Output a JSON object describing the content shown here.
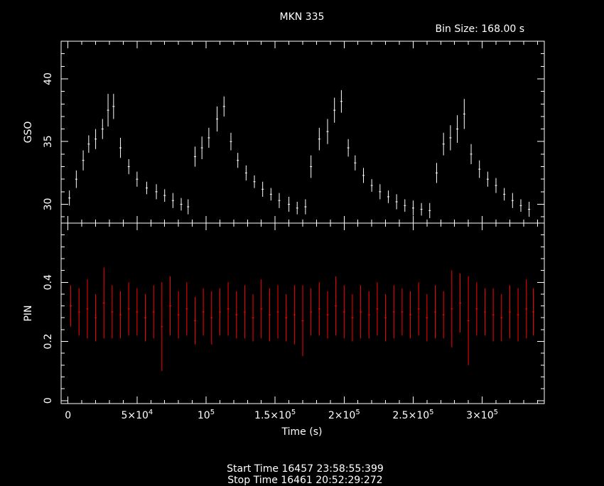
{
  "chart_data": {
    "type": "scatter",
    "title": "MKN 335",
    "subtitle": "Bin Size: 168.00 s",
    "xlabel": "Time (s)",
    "xlim": [
      -5000,
      345000
    ],
    "x_ticks": [
      {
        "value": 0,
        "label": "0",
        "base": "0",
        "exp": ""
      },
      {
        "value": 50000,
        "label": "5×10^4",
        "base": "5×10",
        "exp": "4"
      },
      {
        "value": 100000,
        "label": "10^5",
        "base": "10",
        "exp": "5"
      },
      {
        "value": 150000,
        "label": "1.5×10^5",
        "base": "1.5×10",
        "exp": "5"
      },
      {
        "value": 200000,
        "label": "2×10^5",
        "base": "2×10",
        "exp": "5"
      },
      {
        "value": 250000,
        "label": "2.5×10^5",
        "base": "2.5×10",
        "exp": "5"
      },
      {
        "value": 300000,
        "label": "3×10^5",
        "base": "3×10",
        "exp": "5"
      }
    ],
    "panels": [
      {
        "name": "GSO",
        "ylabel": "GSO",
        "ylim": [
          28.5,
          43
        ],
        "y_ticks": [
          30,
          35,
          40
        ],
        "color": "#ffffff",
        "x": [
          1000,
          6000,
          11000,
          15000,
          20000,
          25000,
          29000,
          33000,
          38000,
          44000,
          50000,
          57000,
          64000,
          70000,
          76000,
          82000,
          87000,
          92000,
          97000,
          102000,
          108000,
          113000,
          118000,
          123000,
          129000,
          135000,
          141000,
          147000,
          153000,
          160000,
          166000,
          172000,
          176000,
          182000,
          188000,
          193000,
          198000,
          203000,
          208000,
          214000,
          220000,
          226000,
          232000,
          238000,
          244000,
          250000,
          256000,
          262000,
          267000,
          272000,
          277000,
          282000,
          287000,
          292000,
          298000,
          304000,
          310000,
          316000,
          322000,
          328000,
          334000
        ],
        "y": [
          30.5,
          32.0,
          33.5,
          34.8,
          35.2,
          36.0,
          37.5,
          37.8,
          34.5,
          33.0,
          32.0,
          31.3,
          31.0,
          30.7,
          30.3,
          30.0,
          29.8,
          33.8,
          34.5,
          35.3,
          36.8,
          37.8,
          35.0,
          33.5,
          32.5,
          31.8,
          31.2,
          30.8,
          30.3,
          30.0,
          29.7,
          29.8,
          33.0,
          35.2,
          35.8,
          37.5,
          38.2,
          34.5,
          33.3,
          32.3,
          31.5,
          31.0,
          30.6,
          30.2,
          29.9,
          29.7,
          29.6,
          29.5,
          32.5,
          34.8,
          35.3,
          36.0,
          37.2,
          34.0,
          32.8,
          32.0,
          31.5,
          30.8,
          30.3,
          29.9,
          29.6
        ],
        "err": [
          0.6,
          0.7,
          0.8,
          0.7,
          0.8,
          0.8,
          1.3,
          1.0,
          0.8,
          0.6,
          0.6,
          0.5,
          0.6,
          0.5,
          0.6,
          0.5,
          0.6,
          0.8,
          0.9,
          0.8,
          1.0,
          0.8,
          0.7,
          0.6,
          0.6,
          0.5,
          0.6,
          0.5,
          0.6,
          0.6,
          0.5,
          0.6,
          0.9,
          0.9,
          1.0,
          1.0,
          0.9,
          0.7,
          0.6,
          0.6,
          0.5,
          0.6,
          0.5,
          0.6,
          0.5,
          0.6,
          0.5,
          0.6,
          0.8,
          0.9,
          1.0,
          1.1,
          1.2,
          0.8,
          0.7,
          0.6,
          0.6,
          0.5,
          0.6,
          0.5,
          0.6
        ]
      },
      {
        "name": "PIN",
        "ylabel": "PIN",
        "ylim": [
          -0.01,
          0.6
        ],
        "y_ticks": [
          0,
          0.2,
          0.4
        ],
        "color": "#ff0000",
        "x": [
          2000,
          8000,
          14000,
          20000,
          26000,
          32000,
          38000,
          44000,
          50000,
          56000,
          62000,
          68000,
          74000,
          80000,
          86000,
          92000,
          98000,
          104000,
          110000,
          116000,
          122000,
          128000,
          134000,
          140000,
          146000,
          152000,
          158000,
          164000,
          170000,
          176000,
          182000,
          188000,
          194000,
          200000,
          206000,
          212000,
          218000,
          224000,
          230000,
          236000,
          242000,
          248000,
          254000,
          260000,
          266000,
          272000,
          278000,
          284000,
          290000,
          296000,
          302000,
          308000,
          314000,
          320000,
          326000,
          332000,
          337000
        ],
        "y": [
          0.32,
          0.3,
          0.31,
          0.28,
          0.33,
          0.3,
          0.29,
          0.31,
          0.3,
          0.28,
          0.3,
          0.25,
          0.32,
          0.29,
          0.31,
          0.27,
          0.3,
          0.28,
          0.3,
          0.31,
          0.29,
          0.3,
          0.28,
          0.31,
          0.29,
          0.3,
          0.28,
          0.29,
          0.27,
          0.3,
          0.31,
          0.29,
          0.32,
          0.3,
          0.28,
          0.3,
          0.29,
          0.31,
          0.28,
          0.3,
          0.3,
          0.29,
          0.31,
          0.28,
          0.3,
          0.29,
          0.31,
          0.33,
          0.27,
          0.31,
          0.3,
          0.29,
          0.28,
          0.3,
          0.29,
          0.31,
          0.3
        ],
        "err": [
          0.07,
          0.08,
          0.1,
          0.08,
          0.12,
          0.09,
          0.08,
          0.09,
          0.08,
          0.08,
          0.09,
          0.15,
          0.1,
          0.08,
          0.09,
          0.08,
          0.08,
          0.09,
          0.08,
          0.09,
          0.08,
          0.09,
          0.08,
          0.1,
          0.09,
          0.09,
          0.08,
          0.1,
          0.12,
          0.08,
          0.09,
          0.08,
          0.1,
          0.09,
          0.08,
          0.09,
          0.08,
          0.09,
          0.08,
          0.09,
          0.08,
          0.08,
          0.09,
          0.08,
          0.09,
          0.08,
          0.13,
          0.1,
          0.15,
          0.09,
          0.08,
          0.09,
          0.08,
          0.09,
          0.09,
          0.1,
          0.08
        ]
      }
    ],
    "footer": {
      "start_time": "Start Time 16457 23:58:55:399",
      "stop_time": "Stop Time 16461 20:52:29:272"
    }
  }
}
